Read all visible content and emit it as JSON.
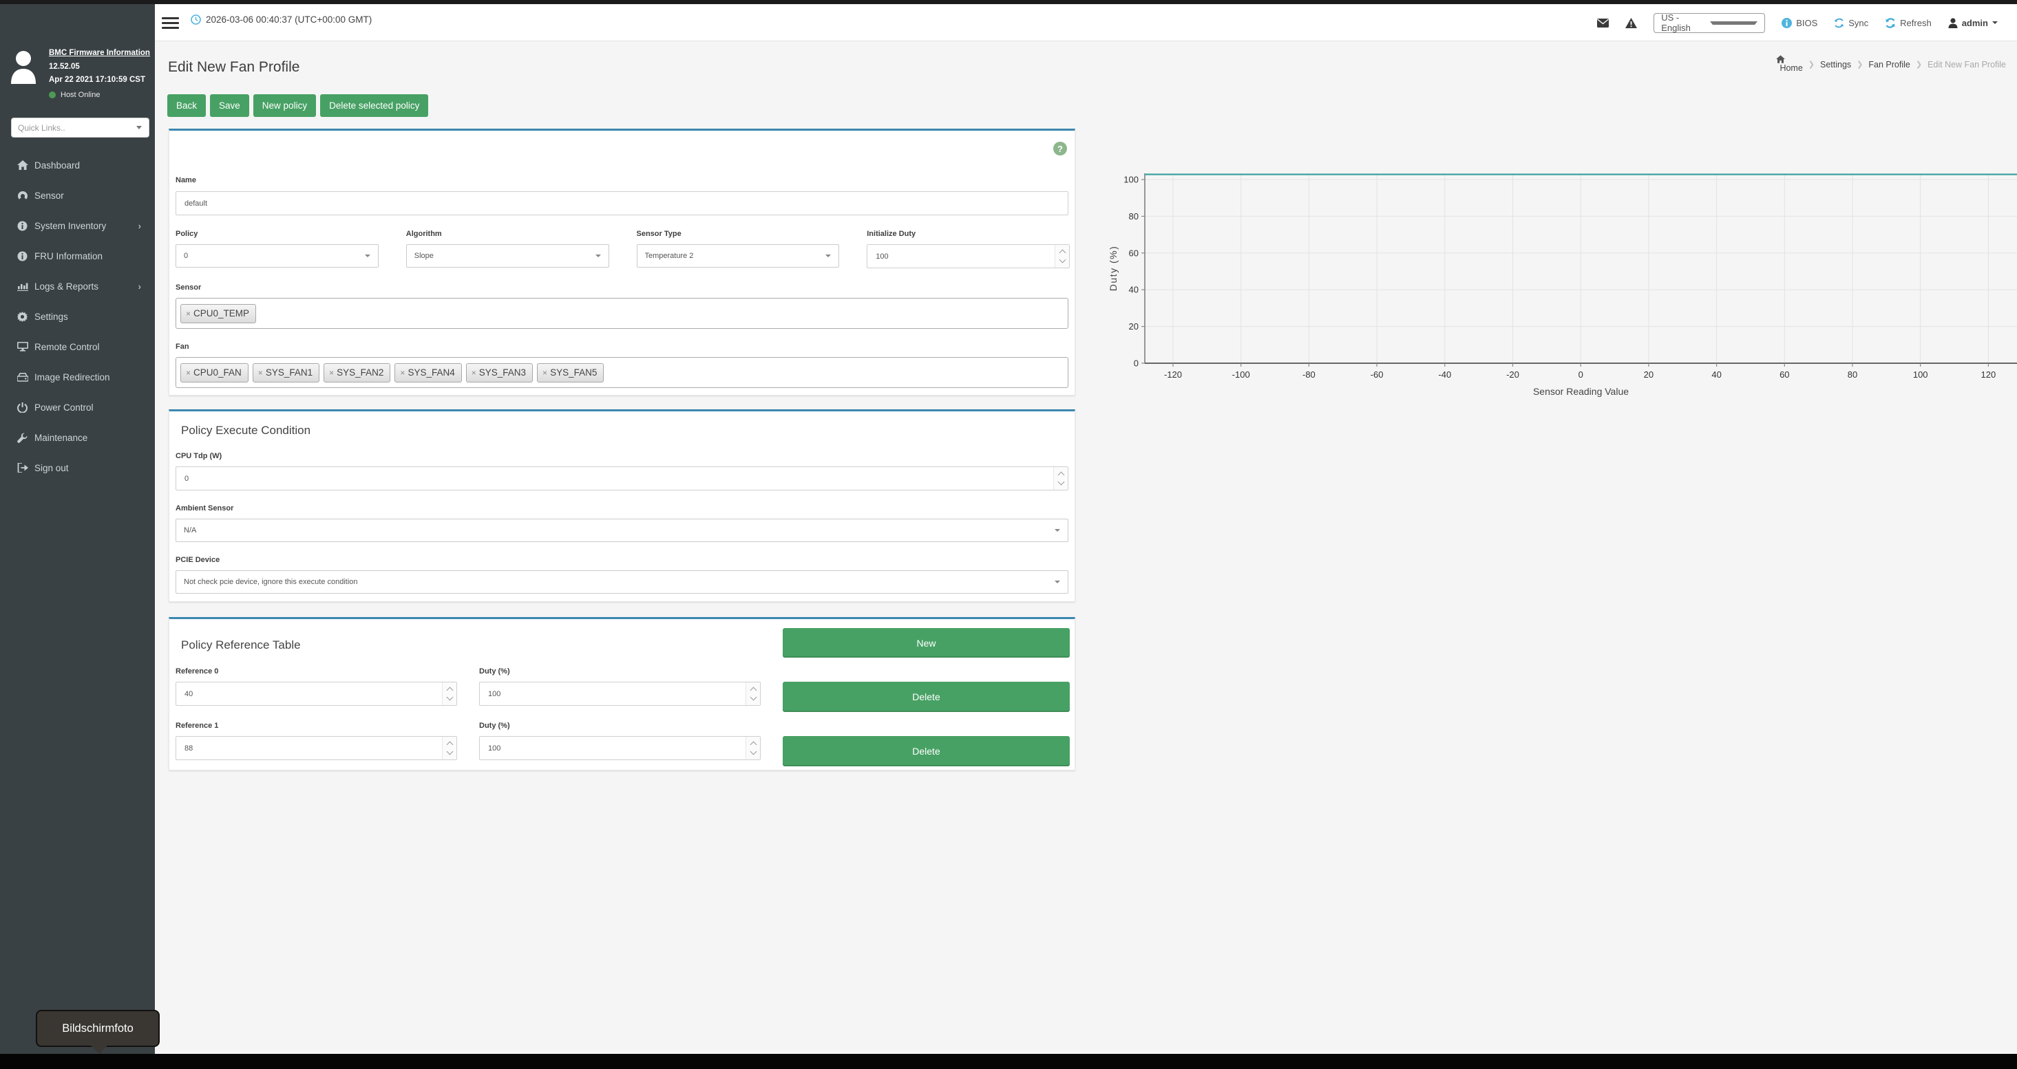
{
  "colors": {
    "accent_blue": "#3c87b0",
    "button_green": "#47a164",
    "line_teal": "#3aa0a0",
    "sidebar_bg": "#3a4144",
    "link_blue": "#3aa7db"
  },
  "header": {
    "timestamp": "2026-03-06 00:40:37 (UTC+00:00 GMT)",
    "language": "US - English",
    "bios_label": "BIOS",
    "sync_label": "Sync",
    "refresh_label": "Refresh",
    "user": "admin"
  },
  "sidebar": {
    "firmware_title": "BMC Firmware Information",
    "version": "12.52.05",
    "build_date": "Apr 22 2021 17:10:59 CST",
    "host_status": "Host Online",
    "quick_links_placeholder": "Quick Links..",
    "items": [
      {
        "label": "Dashboard",
        "icon": "home-icon",
        "chevron": false
      },
      {
        "label": "Sensor",
        "icon": "gauge-icon",
        "chevron": false
      },
      {
        "label": "System Inventory",
        "icon": "info-icon",
        "chevron": true
      },
      {
        "label": "FRU Information",
        "icon": "info-icon",
        "chevron": false
      },
      {
        "label": "Logs & Reports",
        "icon": "chart-bars-icon",
        "chevron": true
      },
      {
        "label": "Settings",
        "icon": "gear-icon",
        "chevron": false
      },
      {
        "label": "Remote Control",
        "icon": "monitor-icon",
        "chevron": false
      },
      {
        "label": "Image Redirection",
        "icon": "drive-icon",
        "chevron": false
      },
      {
        "label": "Power Control",
        "icon": "power-icon",
        "chevron": false
      },
      {
        "label": "Maintenance",
        "icon": "wrench-icon",
        "chevron": false
      },
      {
        "label": "Sign out",
        "icon": "signout-icon",
        "chevron": false
      }
    ]
  },
  "breadcrumb": [
    "Home",
    "Settings",
    "Fan Profile",
    "Edit New Fan Profile"
  ],
  "page": {
    "title": "Edit New Fan Profile"
  },
  "actions": {
    "back": "Back",
    "save": "Save",
    "new_policy": "New policy",
    "delete_selected": "Delete selected policy"
  },
  "profile_form": {
    "name_label": "Name",
    "name_value": "default",
    "policy_label": "Policy",
    "policy_value": "0",
    "algorithm_label": "Algorithm",
    "algorithm_value": "Slope",
    "sensor_type_label": "Sensor Type",
    "sensor_type_value": "Temperature 2",
    "initialize_duty_label": "Initialize Duty",
    "initialize_duty_value": "100",
    "sensor_label": "Sensor",
    "sensor_tags": [
      "CPU0_TEMP"
    ],
    "fan_label": "Fan",
    "fan_tags": [
      "CPU0_FAN",
      "SYS_FAN1",
      "SYS_FAN2",
      "SYS_FAN4",
      "SYS_FAN3",
      "SYS_FAN5"
    ]
  },
  "execute_condition": {
    "heading": "Policy Execute Condition",
    "cpu_tdp_label": "CPU Tdp (W)",
    "cpu_tdp_value": "0",
    "ambient_label": "Ambient Sensor",
    "ambient_value": "N/A",
    "pcie_label": "PCIE Device",
    "pcie_value": "Not check pcie device, ignore this execute condition"
  },
  "reference_table": {
    "heading": "Policy Reference Table",
    "new_label": "New",
    "rows": [
      {
        "ref_label": "Reference 0",
        "ref_value": "40",
        "duty_label": "Duty (%)",
        "duty_value": "100",
        "delete_label": "Delete"
      },
      {
        "ref_label": "Reference 1",
        "ref_value": "88",
        "duty_label": "Duty (%)",
        "duty_value": "100",
        "delete_label": "Delete"
      }
    ]
  },
  "chart_data": {
    "type": "line",
    "title": "",
    "xlabel": "Sensor Reading Value",
    "ylabel": "Duty (%)",
    "xticks": [
      -120,
      -100,
      -80,
      -60,
      -40,
      -20,
      0,
      20,
      40,
      60,
      80,
      100,
      120
    ],
    "yticks": [
      0,
      20,
      40,
      60,
      80,
      100
    ],
    "xlim": [
      -128,
      129
    ],
    "ylim": [
      0,
      103
    ],
    "grid": true,
    "legend": "none",
    "series": [
      {
        "name": "duty-curve",
        "color": "#3aa0a0",
        "y_constant": 100,
        "points": [
          [
            -120,
            100
          ],
          [
            120,
            100
          ]
        ]
      }
    ]
  },
  "desktop": {
    "tooltip": "Bildschirmfoto"
  }
}
